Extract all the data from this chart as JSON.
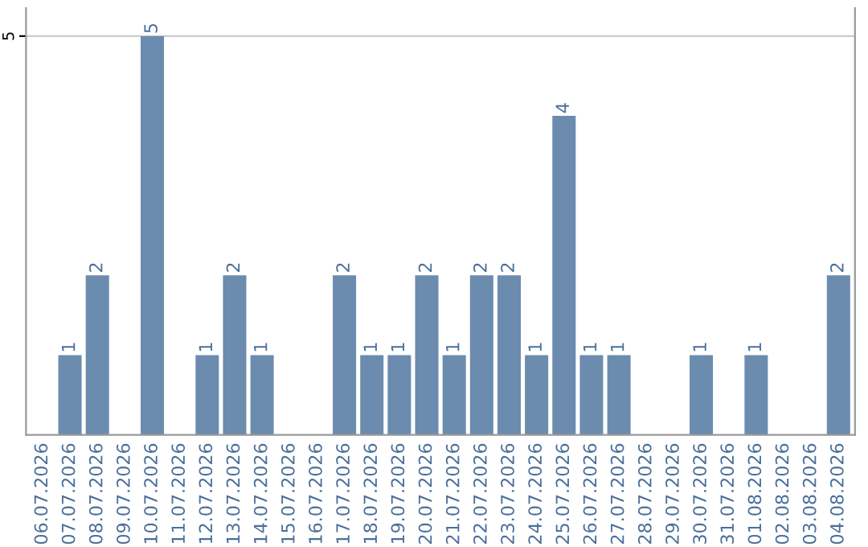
{
  "chart_data": {
    "type": "bar",
    "categories": [
      "06.07.2026",
      "07.07.2026",
      "08.07.2026",
      "09.07.2026",
      "10.07.2026",
      "11.07.2026",
      "12.07.2026",
      "13.07.2026",
      "14.07.2026",
      "15.07.2026",
      "16.07.2026",
      "17.07.2026",
      "18.07.2026",
      "19.07.2026",
      "20.07.2026",
      "21.07.2026",
      "22.07.2026",
      "23.07.2026",
      "24.07.2026",
      "25.07.2026",
      "26.07.2026",
      "27.07.2026",
      "28.07.2026",
      "29.07.2026",
      "30.07.2026",
      "31.07.2026",
      "01.08.2026",
      "02.08.2026",
      "03.08.2026",
      "04.08.2026"
    ],
    "values": [
      0,
      1,
      2,
      0,
      5,
      0,
      1,
      2,
      1,
      0,
      0,
      2,
      1,
      1,
      2,
      1,
      2,
      2,
      1,
      4,
      1,
      1,
      0,
      0,
      1,
      0,
      1,
      0,
      0,
      2
    ],
    "value_labels": [
      null,
      "1",
      "2",
      null,
      "5",
      null,
      "1",
      "2",
      "1",
      null,
      null,
      "2",
      "1",
      "1",
      "2",
      "1",
      "2",
      "2",
      "1",
      "4",
      "1",
      "1",
      null,
      null,
      "1",
      null,
      "1",
      null,
      null,
      "2"
    ],
    "color": "#6b8cae",
    "ylim": [
      0,
      5.35
    ],
    "yticks": [
      5
    ],
    "grid": "y"
  }
}
